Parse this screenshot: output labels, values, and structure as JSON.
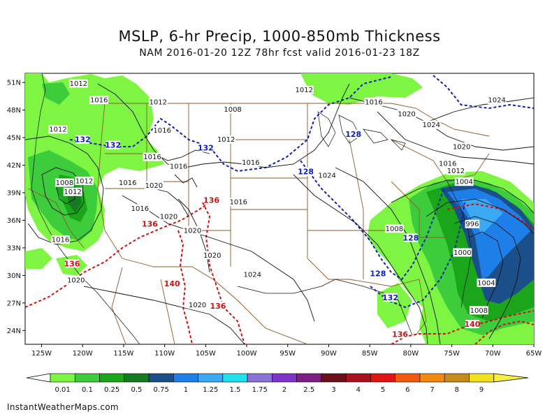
{
  "title": "MSLP, 6-hr Precip, 1000-850mb Thickness",
  "subtitle": "NAM 2016-01-20 12Z 78hr fcst valid 2016-01-23 18Z",
  "credit": "InstantWeatherMaps.com",
  "map": {
    "lat_labels": [
      "51N",
      "48N",
      "45N",
      "42N",
      "39N",
      "36N",
      "33N",
      "30N",
      "27N",
      "24N"
    ],
    "lon_labels": [
      "125W",
      "120W",
      "115W",
      "110W",
      "105W",
      "100W",
      "95W",
      "90W",
      "85W",
      "80W",
      "75W",
      "70W",
      "65W"
    ],
    "isobar_labels": [
      {
        "text": "1012",
        "lon": -120.5,
        "lat": 50.9
      },
      {
        "text": "1016",
        "lon": -118.0,
        "lat": 49.1
      },
      {
        "text": "1012",
        "lon": -110.8,
        "lat": 48.9
      },
      {
        "text": "1008",
        "lon": -101.7,
        "lat": 48.1
      },
      {
        "text": "1012",
        "lon": -93.0,
        "lat": 50.2
      },
      {
        "text": "1016",
        "lon": -84.5,
        "lat": 48.9
      },
      {
        "text": "1020",
        "lon": -80.5,
        "lat": 47.6
      },
      {
        "text": "1024",
        "lon": -69.5,
        "lat": 49.1
      },
      {
        "text": "1024",
        "lon": -77.5,
        "lat": 46.4
      },
      {
        "text": "1012",
        "lon": -123.0,
        "lat": 45.9
      },
      {
        "text": "1016",
        "lon": -110.3,
        "lat": 45.8
      },
      {
        "text": "1012",
        "lon": -102.5,
        "lat": 44.8
      },
      {
        "text": "1016",
        "lon": -111.5,
        "lat": 42.9
      },
      {
        "text": "1016",
        "lon": -108.3,
        "lat": 41.9
      },
      {
        "text": "1016",
        "lon": -99.5,
        "lat": 42.3
      },
      {
        "text": "1024",
        "lon": -90.2,
        "lat": 40.9
      },
      {
        "text": "1020",
        "lon": -73.8,
        "lat": 44.0
      },
      {
        "text": "1016",
        "lon": -75.5,
        "lat": 42.2
      },
      {
        "text": "1012",
        "lon": -74.5,
        "lat": 41.4
      },
      {
        "text": "1004",
        "lon": -73.5,
        "lat": 40.2
      },
      {
        "text": "1008",
        "lon": -122.2,
        "lat": 40.1
      },
      {
        "text": "1012",
        "lon": -119.8,
        "lat": 40.3
      },
      {
        "text": "1012",
        "lon": -121.2,
        "lat": 39.1
      },
      {
        "text": "1016",
        "lon": -114.5,
        "lat": 40.1
      },
      {
        "text": "1020",
        "lon": -111.3,
        "lat": 39.8
      },
      {
        "text": "1016",
        "lon": -113.0,
        "lat": 37.3
      },
      {
        "text": "1020",
        "lon": -109.5,
        "lat": 36.4
      },
      {
        "text": "1016",
        "lon": -101.0,
        "lat": 38.0
      },
      {
        "text": "1020",
        "lon": -106.6,
        "lat": 34.9
      },
      {
        "text": "1016",
        "lon": -122.7,
        "lat": 33.9
      },
      {
        "text": "1020",
        "lon": -104.2,
        "lat": 32.2
      },
      {
        "text": "1024",
        "lon": -99.3,
        "lat": 30.1
      },
      {
        "text": "1020",
        "lon": -120.8,
        "lat": 29.5
      },
      {
        "text": "1020",
        "lon": -106.0,
        "lat": 26.8
      },
      {
        "text": "1008",
        "lon": -82.0,
        "lat": 35.1
      },
      {
        "text": "996",
        "lon": -72.5,
        "lat": 35.6
      },
      {
        "text": "1000",
        "lon": -73.7,
        "lat": 32.5
      },
      {
        "text": "1004",
        "lon": -70.8,
        "lat": 29.2
      },
      {
        "text": "1008",
        "lon": -71.7,
        "lat": 26.2
      }
    ],
    "thickness_labels_blue": [
      {
        "text": "132",
        "lon": -120.0,
        "lat": 44.8
      },
      {
        "text": "132",
        "lon": -116.3,
        "lat": 44.2
      },
      {
        "text": "132",
        "lon": -105.0,
        "lat": 43.9
      },
      {
        "text": "128",
        "lon": -87.0,
        "lat": 45.4
      },
      {
        "text": "128",
        "lon": -92.8,
        "lat": 41.3
      },
      {
        "text": "128",
        "lon": -80.0,
        "lat": 34.1
      },
      {
        "text": "128",
        "lon": -84.0,
        "lat": 30.2
      },
      {
        "text": "132",
        "lon": -82.5,
        "lat": 27.6
      }
    ],
    "thickness_labels_red": [
      {
        "text": "136",
        "lon": -104.3,
        "lat": 38.2
      },
      {
        "text": "136",
        "lon": -111.8,
        "lat": 35.6
      },
      {
        "text": "136",
        "lon": -121.3,
        "lat": 31.3
      },
      {
        "text": "140",
        "lon": -109.1,
        "lat": 29.1
      },
      {
        "text": "136",
        "lon": -103.5,
        "lat": 26.7
      },
      {
        "text": "136",
        "lon": -81.3,
        "lat": 23.6
      },
      {
        "text": "140",
        "lon": -72.5,
        "lat": 24.7
      }
    ]
  },
  "colorbar": {
    "labels": [
      "0.01",
      "0.1",
      "0.25",
      "0.5",
      "0.75",
      "1",
      "1.25",
      "1.5",
      "1.75",
      "2",
      "2.5",
      "3",
      "4",
      "5",
      "6",
      "7",
      "8",
      "9"
    ],
    "colors": [
      "#7ef542",
      "#3ccc3c",
      "#1aa51a",
      "#157a22",
      "#1a4f8a",
      "#1f7fe8",
      "#3aa8f2",
      "#1ee0ee",
      "#8b72d8",
      "#7e33c8",
      "#7e1f86",
      "#6e0e1a",
      "#a8101c",
      "#e01414",
      "#f15a10",
      "#f28a10",
      "#c88a1a",
      "#f0e020",
      "#f8f040"
    ],
    "colors_note": ""
  }
}
